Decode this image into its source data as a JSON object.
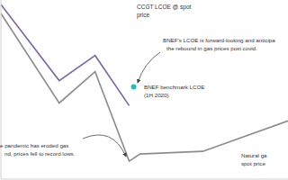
{
  "chart_data": {
    "type": "line",
    "xlim": [
      0,
      320
    ],
    "ylim": [
      0,
      200
    ],
    "grid": false,
    "tick_labels": false,
    "series": [
      {
        "name": "CCGT LCOE @ spot price",
        "color": "#7b64a8",
        "x": [
          0,
          65,
          105,
          143
        ],
        "values": [
          195,
          110,
          138,
          82
        ]
      },
      {
        "color": "#8c8c8c",
        "x": [
          0,
          65,
          105,
          143,
          155,
          225,
          320
        ],
        "values": [
          185,
          85,
          120,
          20,
          28,
          31,
          65
        ]
      },
      {
        "type": "scatter",
        "color": "#33b5c0",
        "x": [
          148
        ],
        "values": [
          103
        ]
      }
    ],
    "annotations": [
      [
        "BNEF's LCOE is forward-looking and anticipa",
        "the rebound in gas prices post covid."
      ],
      [
        "BNEF benchmark LCOE",
        "(1H 2020)"
      ],
      [
        "e pandemic has eroded gas",
        "nd, prices fell to record lows."
      ],
      [
        "Natural ga",
        "spot price"
      ]
    ]
  }
}
